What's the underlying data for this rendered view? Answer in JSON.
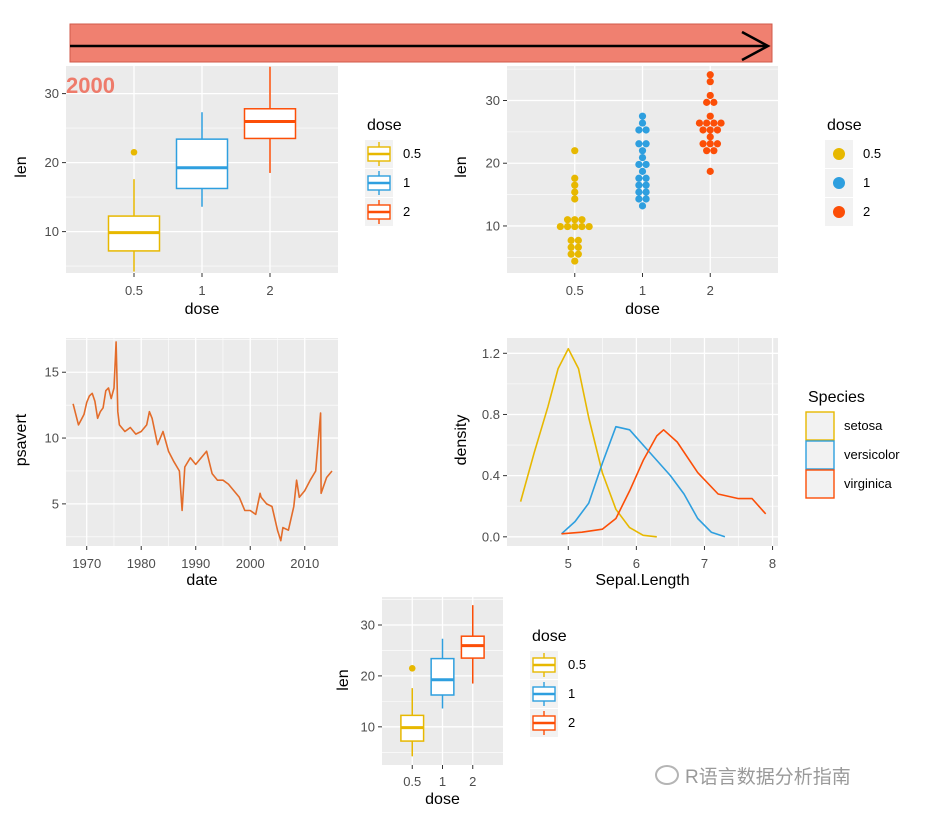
{
  "colors": {
    "panel": "#ebebeb",
    "grid": "#ffffff",
    "banner": "#f08070",
    "banner_border": "#d05a4a",
    "tag": "#ee7b6b",
    "dose": [
      "#e7b800",
      "#2e9fdf",
      "#fc4e07"
    ],
    "psavert_line": "#e36c2a"
  },
  "banner": {
    "arrow_icon": "right-arrow-icon"
  },
  "tag_label": "2000",
  "watermark": {
    "text": "R语言数据分析指南",
    "icon": "wechat-icon"
  },
  "chart_data": [
    {
      "id": "box_top",
      "type": "box",
      "xlabel": "dose",
      "ylabel": "len",
      "categories": [
        "0.5",
        "1",
        "2"
      ],
      "ylim": [
        4,
        34
      ],
      "yticks": [
        10,
        20,
        30
      ],
      "boxes": [
        {
          "q1": 7.2,
          "median": 9.85,
          "q3": 12.25,
          "whisker_low": 4.2,
          "whisker_high": 17.6,
          "outliers": [
            21.5
          ]
        },
        {
          "q1": 16.25,
          "median": 19.25,
          "q3": 23.4,
          "whisker_low": 13.6,
          "whisker_high": 27.3,
          "outliers": []
        },
        {
          "q1": 23.5,
          "median": 25.95,
          "q3": 27.8,
          "whisker_low": 18.5,
          "whisker_high": 33.9,
          "outliers": []
        }
      ],
      "legend": {
        "title": "dose",
        "labels": [
          "0.5",
          "1",
          "2"
        ]
      }
    },
    {
      "id": "dot_top",
      "type": "dotplot",
      "xlabel": "dose",
      "ylabel": "len",
      "categories": [
        "0.5",
        "1",
        "2"
      ],
      "ylim": [
        2.5,
        35.5
      ],
      "yticks": [
        10,
        20,
        30
      ],
      "values": [
        [
          4.2,
          11.5,
          7.3,
          5.8,
          6.4,
          10.0,
          11.2,
          11.2,
          5.2,
          7.0,
          15.2,
          21.5,
          17.6,
          9.7,
          14.5,
          10.0,
          8.2,
          9.4,
          16.5,
          9.7
        ],
        [
          16.5,
          16.5,
          15.2,
          17.3,
          22.5,
          17.3,
          13.6,
          14.5,
          18.8,
          15.5,
          19.7,
          23.3,
          23.6,
          26.4,
          20.0,
          25.2,
          25.8,
          21.2,
          14.5,
          27.3
        ],
        [
          23.6,
          18.5,
          33.9,
          25.5,
          26.4,
          32.5,
          26.7,
          21.5,
          23.3,
          29.5,
          25.5,
          26.4,
          22.4,
          24.5,
          24.8,
          30.9,
          26.4,
          27.3,
          29.4,
          23.0
        ]
      ],
      "legend": {
        "title": "dose",
        "labels": [
          "0.5",
          "1",
          "2"
        ]
      }
    },
    {
      "id": "psavert",
      "type": "line",
      "xlabel": "date",
      "ylabel": "psavert",
      "xlim": [
        1966.2,
        2016.1
      ],
      "ylim": [
        1.8,
        17.6
      ],
      "xticks": [
        1970,
        1980,
        1990,
        2000,
        2010
      ],
      "yticks": [
        5,
        10,
        15
      ],
      "x": [
        1967.5,
        1968,
        1968.5,
        1969,
        1969.5,
        1970,
        1970.5,
        1971,
        1971.5,
        1972,
        1972.5,
        1973,
        1973.5,
        1974,
        1974.5,
        1975,
        1975.4,
        1975.7,
        1976,
        1977,
        1978,
        1979,
        1980,
        1981,
        1981.5,
        1982,
        1983,
        1984,
        1985,
        1986,
        1987,
        1987.5,
        1988,
        1989,
        1990,
        1991,
        1992,
        1993,
        1994,
        1995,
        1996,
        1997,
        1998,
        1999,
        2000,
        2001,
        2001.8,
        2002,
        2003,
        2004,
        2005,
        2005.6,
        2006,
        2007,
        2008,
        2008.5,
        2009,
        2010,
        2011,
        2012,
        2012.9,
        2013,
        2014,
        2015
      ],
      "y": [
        12.6,
        11.8,
        11.0,
        11.4,
        11.8,
        12.7,
        13.2,
        13.4,
        12.8,
        11.5,
        12.0,
        12.3,
        13.6,
        13.8,
        13.0,
        13.8,
        17.3,
        12.0,
        11.0,
        10.5,
        10.8,
        10.3,
        10.5,
        11.0,
        12.0,
        11.5,
        9.5,
        10.5,
        9.0,
        8.2,
        7.5,
        4.5,
        7.8,
        8.5,
        8.0,
        8.5,
        9.0,
        7.3,
        6.8,
        6.8,
        6.5,
        6.0,
        5.5,
        4.5,
        4.5,
        4.2,
        5.8,
        5.5,
        5.0,
        4.8,
        3.0,
        2.2,
        3.2,
        3.0,
        4.8,
        6.8,
        5.5,
        6.0,
        6.8,
        7.5,
        11.9,
        5.8,
        7.0,
        7.5
      ]
    },
    {
      "id": "density",
      "type": "density",
      "xlabel": "Sepal.Length",
      "ylabel": "density",
      "xlim": [
        4.1,
        8.08
      ],
      "ylim": [
        -0.06,
        1.3
      ],
      "xticks": [
        5,
        6,
        7,
        8
      ],
      "yticks": [
        0.0,
        0.4,
        0.8,
        1.2
      ],
      "ytick_labels": [
        "0.0",
        "0.4",
        "0.8",
        "1.2"
      ],
      "series": [
        {
          "name": "setosa",
          "x": [
            4.3,
            4.5,
            4.7,
            4.85,
            5.0,
            5.15,
            5.3,
            5.5,
            5.7,
            5.9,
            6.1,
            6.3
          ],
          "y": [
            0.23,
            0.55,
            0.85,
            1.1,
            1.23,
            1.1,
            0.78,
            0.42,
            0.18,
            0.06,
            0.01,
            0.0
          ]
        },
        {
          "name": "versicolor",
          "x": [
            4.9,
            5.1,
            5.3,
            5.5,
            5.7,
            5.9,
            6.1,
            6.3,
            6.5,
            6.7,
            6.9,
            7.1,
            7.3
          ],
          "y": [
            0.02,
            0.1,
            0.22,
            0.48,
            0.72,
            0.7,
            0.6,
            0.5,
            0.4,
            0.28,
            0.12,
            0.03,
            0.0
          ]
        },
        {
          "name": "virginica",
          "x": [
            4.9,
            5.2,
            5.5,
            5.7,
            5.9,
            6.1,
            6.3,
            6.4,
            6.6,
            6.9,
            7.2,
            7.5,
            7.7,
            7.9
          ],
          "y": [
            0.02,
            0.03,
            0.05,
            0.12,
            0.3,
            0.5,
            0.66,
            0.7,
            0.62,
            0.42,
            0.28,
            0.25,
            0.25,
            0.15
          ]
        }
      ],
      "legend": {
        "title": "Species",
        "labels": [
          "setosa",
          "versicolor",
          "virginica"
        ]
      }
    },
    {
      "id": "box_bottom",
      "type": "box",
      "xlabel": "dose",
      "ylabel": "len",
      "categories": [
        "0.5",
        "1",
        "2"
      ],
      "ylim": [
        2.5,
        35.5
      ],
      "yticks": [
        10,
        20,
        30
      ],
      "boxes": [
        {
          "q1": 7.2,
          "median": 9.85,
          "q3": 12.25,
          "whisker_low": 4.2,
          "whisker_high": 17.6,
          "outliers": [
            21.5
          ]
        },
        {
          "q1": 16.25,
          "median": 19.25,
          "q3": 23.4,
          "whisker_low": 13.6,
          "whisker_high": 27.3,
          "outliers": []
        },
        {
          "q1": 23.5,
          "median": 25.95,
          "q3": 27.8,
          "whisker_low": 18.5,
          "whisker_high": 33.9,
          "outliers": []
        }
      ],
      "legend": {
        "title": "dose",
        "labels": [
          "0.5",
          "1",
          "2"
        ]
      }
    }
  ]
}
